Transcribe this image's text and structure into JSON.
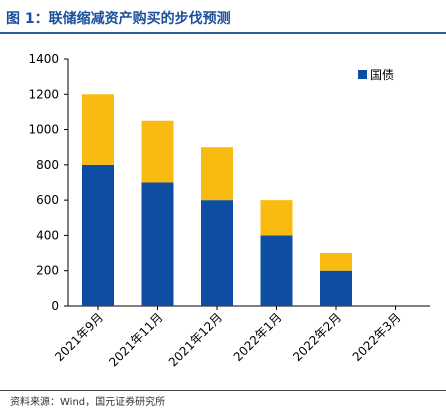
{
  "figure": {
    "title": "图 1：联储缩减资产购买的步伐预测",
    "source": "资料来源：Wind，国元证券研究所"
  },
  "chart_data": {
    "type": "bar",
    "stacked": true,
    "categories": [
      "2021年9月",
      "2021年11月",
      "2021年12月",
      "2022年1月",
      "2022年2月",
      "2022年3月"
    ],
    "series": [
      {
        "name": "国债",
        "values": [
          800,
          700,
          600,
          400,
          200,
          0
        ],
        "color": "#0d4ea3"
      },
      {
        "name": "",
        "values": [
          400,
          350,
          300,
          200,
          100,
          0
        ],
        "color": "#f9bb12"
      }
    ],
    "ylim": [
      0,
      1400
    ],
    "yticks": [
      0,
      200,
      400,
      600,
      800,
      1000,
      1200,
      1400
    ],
    "grid": false,
    "legend": "top-right",
    "xlabel": "",
    "ylabel": ""
  }
}
